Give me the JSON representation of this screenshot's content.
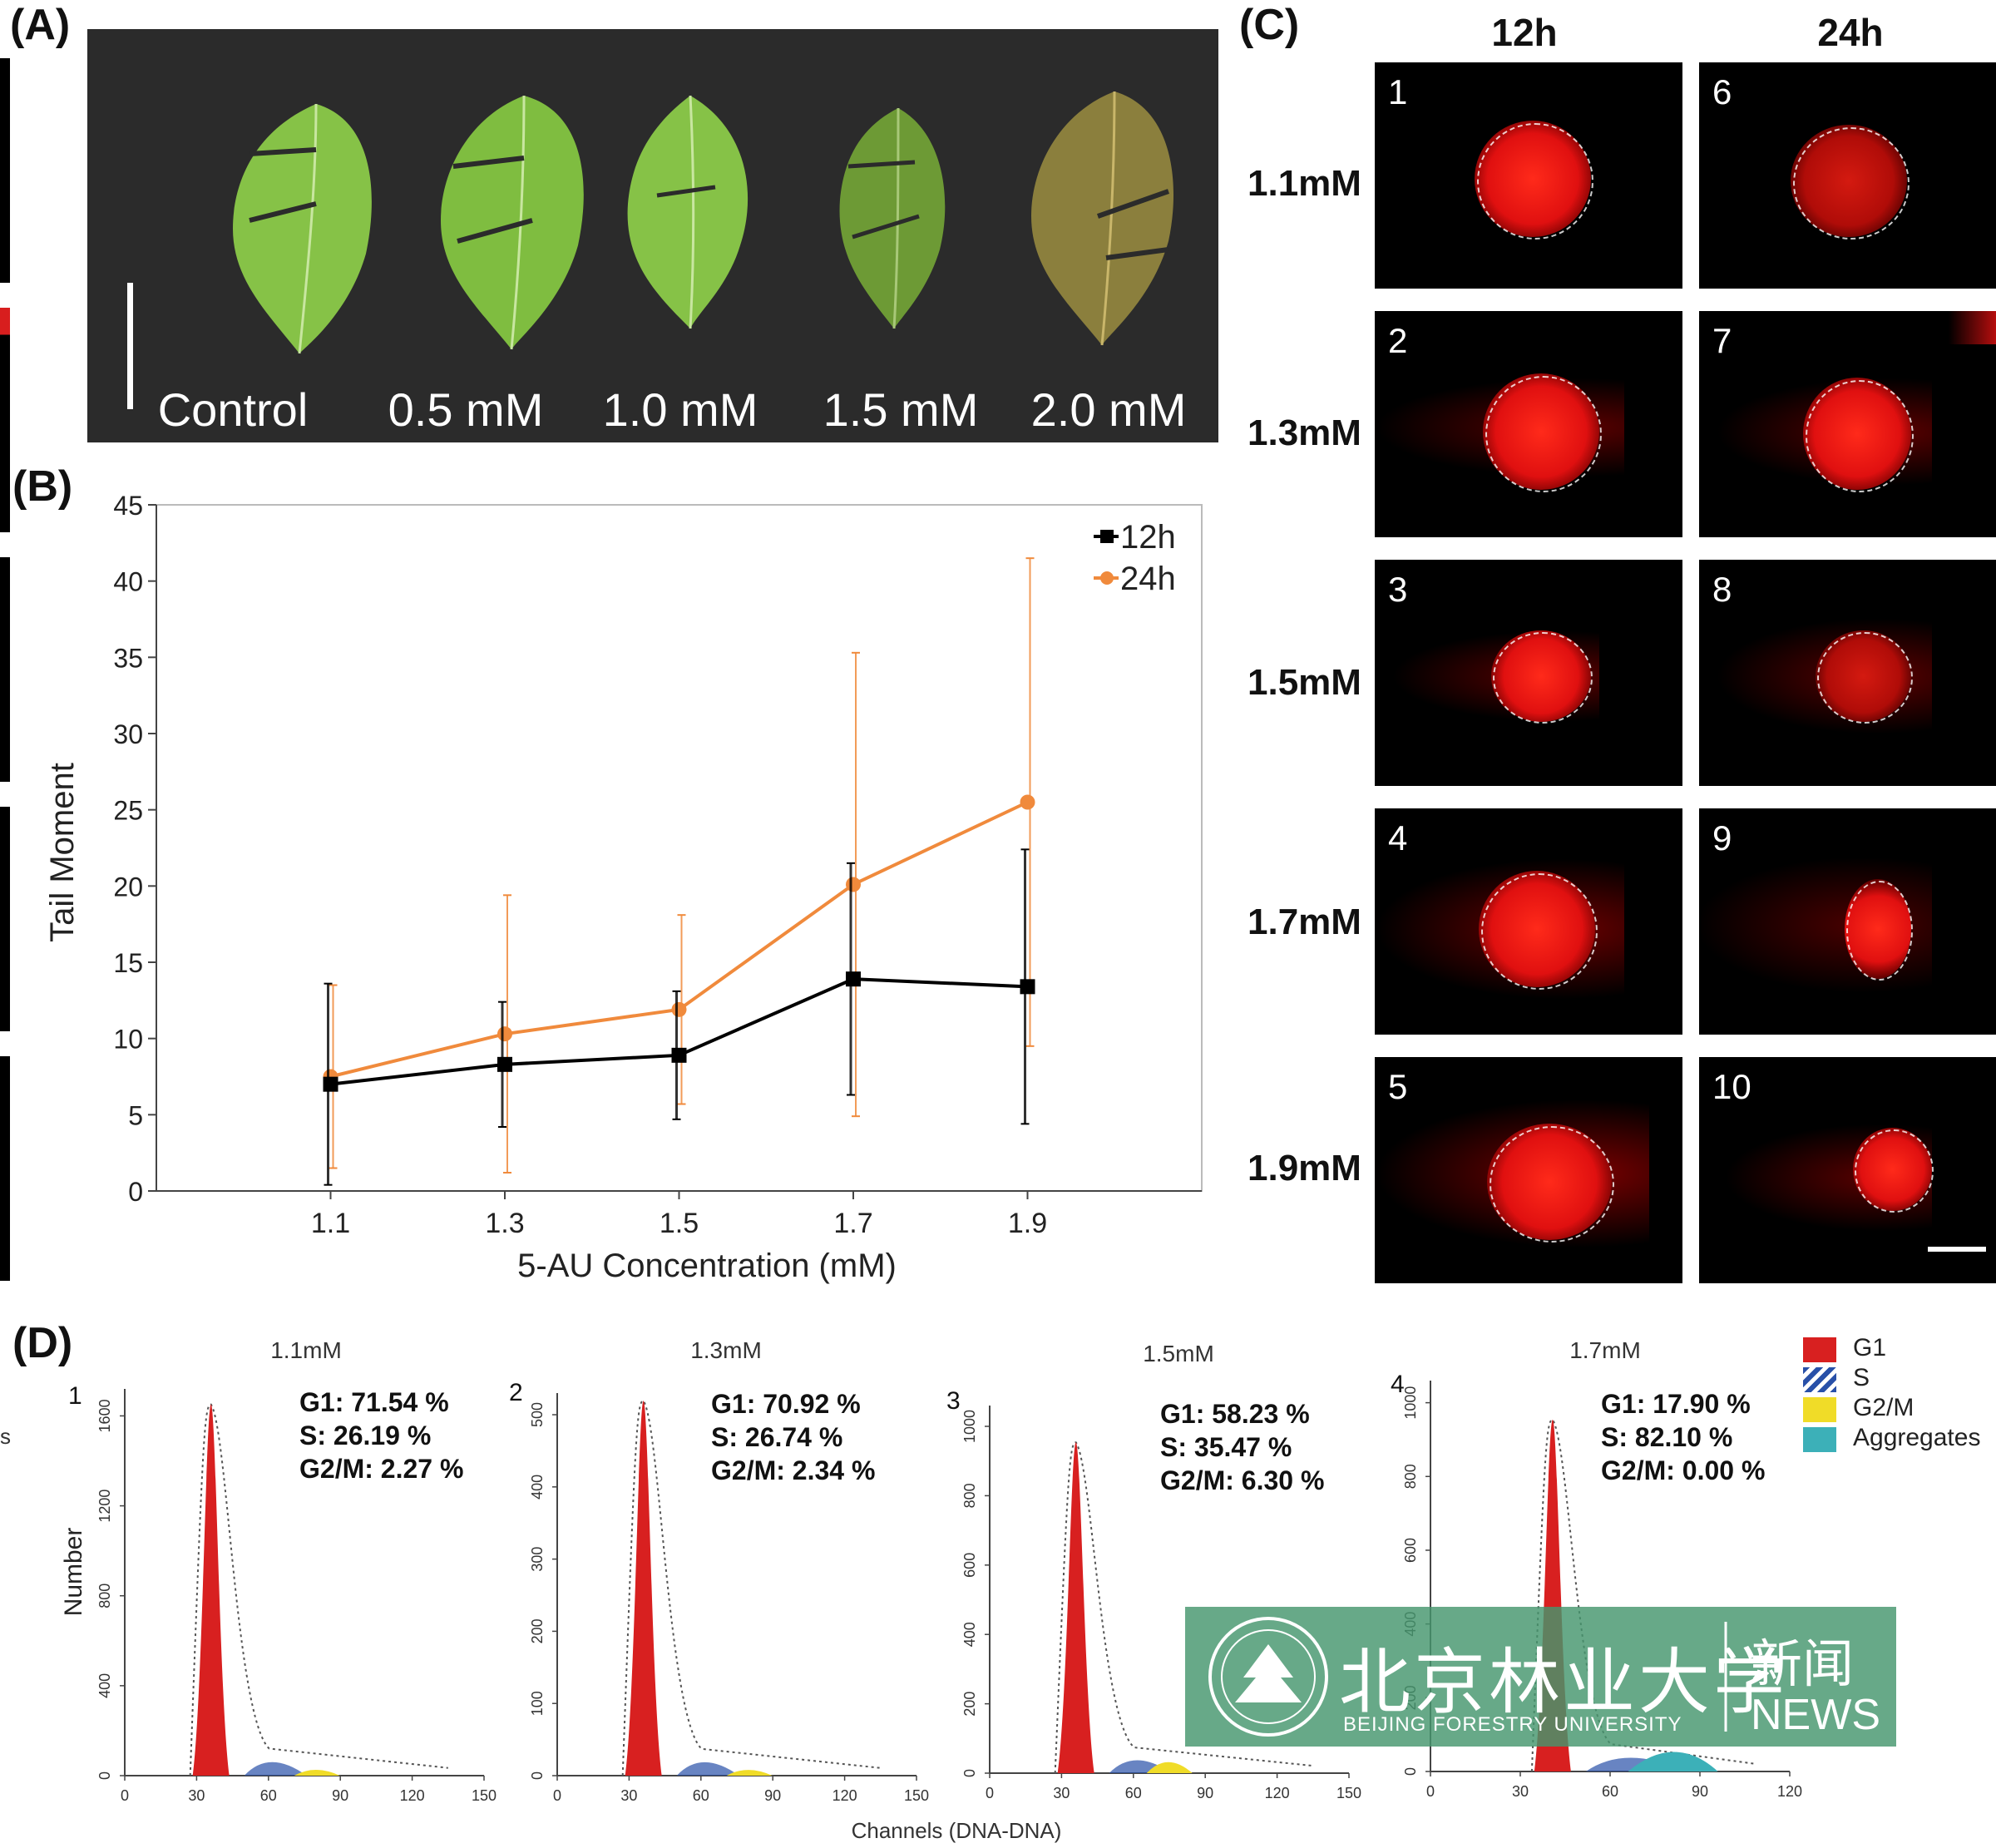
{
  "panels": {
    "A": "(A)",
    "B": "(B)",
    "C": "(C)",
    "D": "(D)"
  },
  "panelA": {
    "leaf_labels": [
      "Control",
      "0.5 mM",
      "1.0 mM",
      "1.5 mM",
      "2.0 mM"
    ]
  },
  "chart_data": [
    {
      "type": "line",
      "x": [
        1.1,
        1.3,
        1.5,
        1.7,
        1.9
      ],
      "xlabel": "5-AU Concentration (mM)",
      "ylabel": "Tail Moment",
      "ylim": [
        0,
        45
      ],
      "yticks": [
        0,
        5,
        10,
        15,
        20,
        25,
        30,
        35,
        40,
        45
      ],
      "xticks": [
        "1.1",
        "1.3",
        "1.5",
        "1.7",
        "1.9"
      ],
      "legend": "top-right",
      "series": [
        {
          "name": "12h",
          "color": "#000000",
          "values": [
            7.0,
            8.3,
            8.9,
            13.9,
            13.4
          ],
          "error": [
            6.6,
            4.1,
            4.2,
            7.6,
            9.0
          ]
        },
        {
          "name": "24h",
          "color": "#f08a3c",
          "values": [
            7.5,
            10.3,
            11.9,
            20.1,
            25.5
          ],
          "error": [
            6.0,
            9.1,
            6.2,
            15.2,
            16.0
          ]
        }
      ]
    },
    {
      "type": "area",
      "panel": "D",
      "xlabel": "Channels (DNA-DNA)",
      "ylabel": "Number",
      "legend": [
        "G1",
        "S",
        "G2/M",
        "Aggregates"
      ],
      "histograms": [
        {
          "index": "1",
          "title": "1.1mM",
          "stats": [
            "G1: 71.54 %",
            "S: 26.19 %",
            "G2/M: 2.27 %"
          ],
          "yticks": [
            "0",
            "400",
            "800",
            "1200",
            "1600"
          ],
          "xticks": [
            "0",
            "30",
            "60",
            "90",
            "120",
            "150"
          ]
        },
        {
          "index": "2",
          "title": "1.3mM",
          "stats": [
            "G1: 70.92 %",
            "S: 26.74 %",
            "G2/M: 2.34 %"
          ],
          "yticks": [
            "0",
            "100",
            "200",
            "300",
            "400",
            "500"
          ],
          "xticks": [
            "0",
            "30",
            "60",
            "90",
            "120",
            "150"
          ]
        },
        {
          "index": "3",
          "title": "1.5mM",
          "stats": [
            "G1: 58.23 %",
            "S: 35.47 %",
            "G2/M: 6.30 %"
          ],
          "yticks": [
            "0",
            "200",
            "400",
            "600",
            "800",
            "1000"
          ],
          "xticks": [
            "0",
            "30",
            "60",
            "90",
            "120",
            "150"
          ]
        },
        {
          "index": "4",
          "title": "1.7mM",
          "stats": [
            "G1: 17.90 %",
            "S: 82.10 %",
            "G2/M: 0.00 %"
          ],
          "yticks": [
            "0",
            "200",
            "400",
            "600",
            "800",
            "1000"
          ],
          "xticks": [
            "0",
            "30",
            "60",
            "90",
            "120"
          ]
        }
      ]
    }
  ],
  "panelC": {
    "columns": [
      "12h",
      "24h"
    ],
    "rows": [
      "1.1mM",
      "1.3mM",
      "1.5mM",
      "1.7mM",
      "1.9mM"
    ],
    "cells_12h": [
      "1",
      "2",
      "3",
      "4",
      "5"
    ],
    "cells_24h": [
      "6",
      "7",
      "8",
      "9",
      "10"
    ]
  },
  "legendD_colors": {
    "G1": "#d82020",
    "S": "#2850a8",
    "G2/M": "#f0dc28",
    "Aggregates": "#3cb0b8"
  },
  "watermark": {
    "cn": "北京林业大学",
    "cn_news": "新闻",
    "en": "BEIJING FORESTRY UNIVERSITY",
    "en_news": "NEWS"
  }
}
